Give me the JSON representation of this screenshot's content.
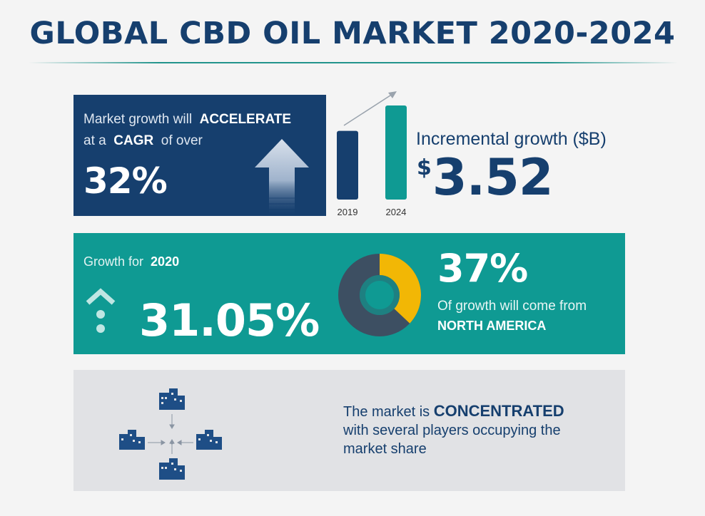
{
  "title": "GLOBAL CBD OIL MARKET 2020-2024",
  "cagr_panel": {
    "line1_prefix": "Market growth will",
    "line1_highlight": "ACCELERATE",
    "line2_prefix": "at a",
    "line2_highlight": "CAGR",
    "line2_suffix": "of over",
    "value": "32%"
  },
  "incremental": {
    "label": "Incremental growth ($B)",
    "currency": "$",
    "value": "3.52"
  },
  "chart_data": {
    "type": "bar",
    "categories": [
      "2019",
      "2024"
    ],
    "values": [
      0.73,
      1.0
    ],
    "colors": [
      "#163f6e",
      "#0f9a93"
    ]
  },
  "growth_panel": {
    "label_prefix": "Growth for",
    "label_year": "2020",
    "value": "31.05%",
    "regional_value": "37%",
    "regional_text": "Of growth will come from",
    "regional_name": "NORTH AMERICA",
    "regional_share": 0.37
  },
  "concentration_panel": {
    "text_prefix": "The market is",
    "text_highlight": "CONCENTRATED",
    "text_line2": "with several players occupying the",
    "text_line3": "market share"
  },
  "icons": {
    "arrow": "up-arrow-icon",
    "growth": "chevron-up-dots-icon",
    "donut": "donut-chart-icon",
    "buildings": "buildings-converging-icon"
  },
  "colors": {
    "navy": "#163f6e",
    "teal": "#0f9a93",
    "yellow": "#f2b705",
    "grey_panel": "#e1e2e5"
  }
}
